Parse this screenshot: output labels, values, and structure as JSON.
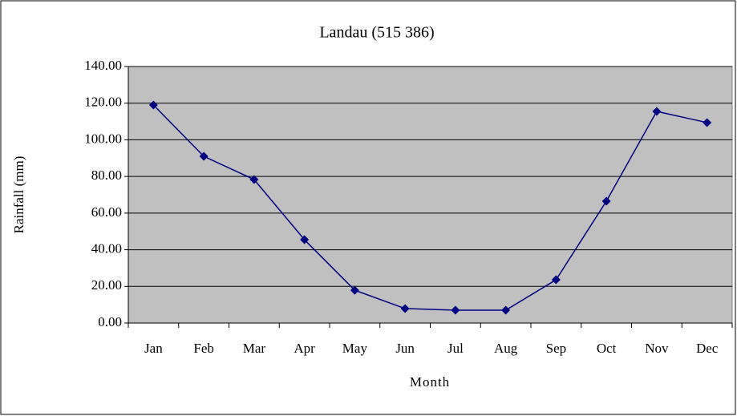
{
  "chart_data": {
    "type": "line",
    "title": "Landau (515 386)",
    "x_label": "Month",
    "y_label": "Rainfall (mm)",
    "categories": [
      "Jan",
      "Feb",
      "Mar",
      "Apr",
      "May",
      "Jun",
      "Jul",
      "Aug",
      "Sep",
      "Oct",
      "Nov",
      "Dec"
    ],
    "series": [
      {
        "name": "Rainfall",
        "color": "#000080",
        "values": [
          119,
          91,
          78.3,
          45.5,
          17.9,
          7.9,
          7,
          7,
          23.6,
          66.5,
          115.5,
          109.4
        ]
      }
    ],
    "ylim": [
      0,
      140
    ],
    "yticks": [
      {
        "value": 0,
        "label": "0.00"
      },
      {
        "value": 20,
        "label": "20.00"
      },
      {
        "value": 40,
        "label": "40.00"
      },
      {
        "value": 60,
        "label": "60.00"
      },
      {
        "value": 80,
        "label": "80.00"
      },
      {
        "value": 100,
        "label": "100.00"
      },
      {
        "value": 120,
        "label": "120.00"
      },
      {
        "value": 140,
        "label": "140.00"
      }
    ],
    "grid": true,
    "plot_background": "#c0c0c0"
  }
}
